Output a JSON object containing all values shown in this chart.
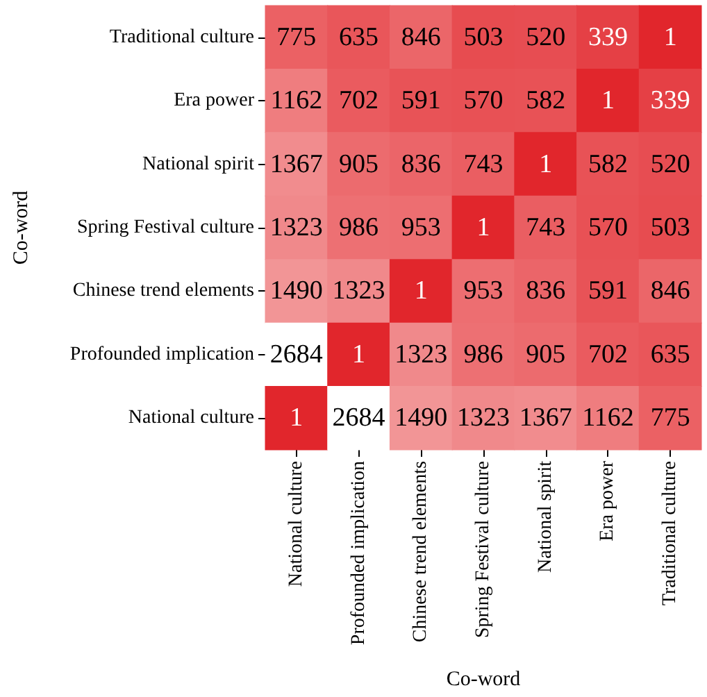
{
  "chart_data": {
    "type": "heatmap",
    "xlabel": "Co-word",
    "ylabel": "Co-word",
    "categories": [
      "National culture",
      "Profounded implication",
      "Chinese trend elements",
      "Spring Festival culture",
      "National spirit",
      "Era power",
      "Traditional culture"
    ],
    "y_categories": [
      "Traditional culture",
      "Era power",
      "National spirit",
      "Spring Festival culture",
      "Chinese trend elements",
      "Profounded implication",
      "National culture"
    ],
    "cells": [
      [
        775,
        635,
        846,
        503,
        520,
        339,
        1
      ],
      [
        1162,
        702,
        591,
        570,
        582,
        1,
        339
      ],
      [
        1367,
        905,
        836,
        743,
        1,
        582,
        520
      ],
      [
        1323,
        986,
        953,
        1,
        743,
        570,
        503
      ],
      [
        1490,
        1323,
        1,
        953,
        836,
        591,
        846
      ],
      [
        2684,
        1,
        1323,
        986,
        905,
        702,
        635
      ],
      [
        1,
        2684,
        1490,
        1323,
        1367,
        1162,
        775
      ]
    ],
    "data_labels": true
  }
}
